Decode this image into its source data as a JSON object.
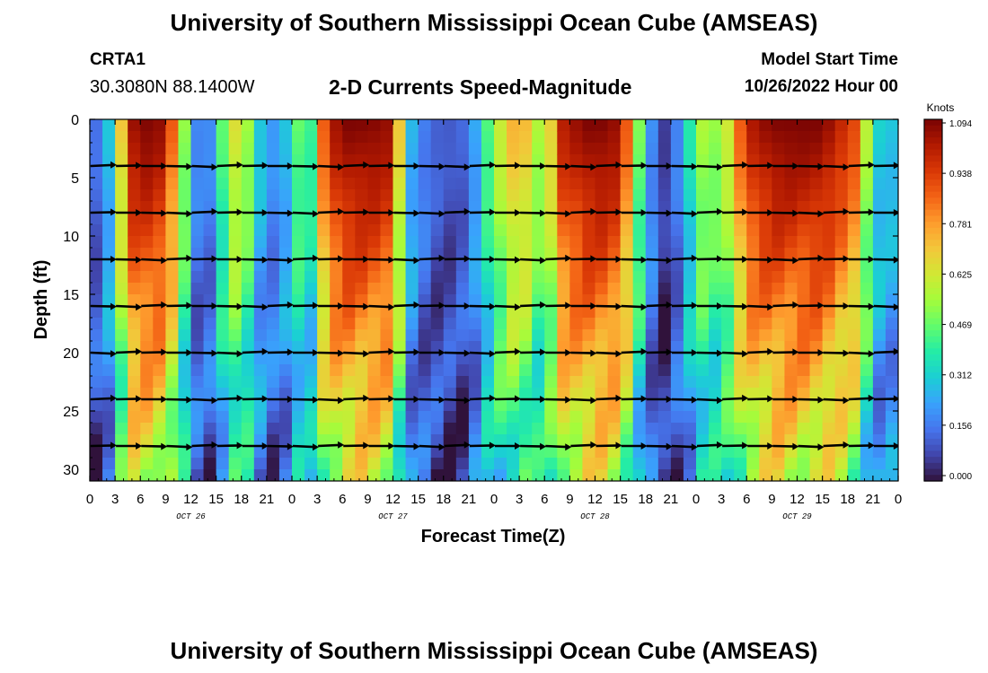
{
  "page": {
    "title_top": "University of Southern Mississippi Ocean Cube (AMSEAS)",
    "title_bottom": "University of Southern Mississippi Ocean Cube (AMSEAS)",
    "station_id": "CRTA1",
    "station_coords": "30.3080N  88.1400W",
    "chart_subtitle": "2-D Currents Speed-Magnitude",
    "model_start_label": "Model Start Time",
    "model_start_value": "10/26/2022 Hour 00"
  },
  "chart_data": {
    "type": "heatmap",
    "title": "2-D Currents Speed-Magnitude",
    "xlabel": "Forecast Time(Z)",
    "ylabel": "Depth (ft)",
    "x_hours": [
      0,
      96
    ],
    "x_tick_labels": [
      "0",
      "3",
      "6",
      "9",
      "12",
      "15",
      "18",
      "21",
      "0",
      "3",
      "6",
      "9",
      "12",
      "15",
      "18",
      "21",
      "0",
      "3",
      "6",
      "9",
      "12",
      "15",
      "18",
      "21",
      "0",
      "3",
      "6",
      "9",
      "12",
      "15",
      "18",
      "21",
      "0"
    ],
    "date_labels": [
      {
        "hour": 12,
        "text": "OCT 26"
      },
      {
        "hour": 36,
        "text": "OCT 27"
      },
      {
        "hour": 60,
        "text": "OCT 28"
      },
      {
        "hour": 84,
        "text": "OCT 29"
      }
    ],
    "ylim": [
      0,
      31
    ],
    "y_ticks": [
      0,
      5,
      10,
      15,
      20,
      25,
      30
    ],
    "colorbar": {
      "unit": "Knots",
      "min": 0.0,
      "max": 1.094,
      "tick_labels": [
        "1.094",
        "0.938",
        "0.781",
        "0.625",
        "0.469",
        "0.312",
        "0.156",
        "0.000"
      ],
      "colors": [
        "#30123b",
        "#4145ab",
        "#4675ed",
        "#39a2fc",
        "#1bcfd4",
        "#24eca6",
        "#61fc6c",
        "#a4fc3b",
        "#d1e834",
        "#f3c63a",
        "#fe9b2d",
        "#f36315",
        "#d93806",
        "#b11901",
        "#7a0403"
      ]
    },
    "time_profile_hours": [
      0,
      1.5,
      3,
      5,
      7,
      9,
      11,
      12.5,
      14,
      16.5,
      18,
      19.5,
      21,
      23,
      24.5,
      26,
      28,
      30,
      33,
      36,
      37.5,
      39,
      42,
      45,
      48,
      51,
      54,
      56,
      59,
      62,
      64,
      66,
      68,
      70,
      71,
      73,
      75,
      78,
      81,
      84,
      87,
      89,
      91,
      93,
      95,
      96
    ],
    "surface_speed_knots": [
      0.2,
      0.1,
      0.5,
      1.05,
      1.094,
      1.05,
      0.6,
      0.2,
      0.15,
      0.6,
      0.7,
      0.4,
      0.2,
      0.25,
      0.5,
      0.35,
      0.95,
      1.094,
      1.094,
      1.05,
      0.35,
      0.2,
      0.1,
      0.15,
      0.55,
      0.8,
      0.5,
      1.0,
      1.094,
      1.094,
      0.85,
      0.3,
      0.05,
      0.2,
      0.35,
      0.6,
      0.5,
      1.0,
      1.094,
      1.094,
      1.094,
      1.0,
      0.9,
      0.4,
      0.2,
      0.6
    ],
    "vector_depths_ft": [
      4,
      8,
      12,
      16,
      20,
      24,
      28
    ],
    "vector_hours": [
      0,
      3,
      6,
      9,
      12,
      15,
      18,
      21,
      24,
      27,
      30,
      33,
      36,
      39,
      42,
      45,
      48,
      51,
      54,
      57,
      60,
      63,
      66,
      69,
      72,
      75,
      78,
      81,
      84,
      87,
      90,
      93,
      96
    ]
  }
}
